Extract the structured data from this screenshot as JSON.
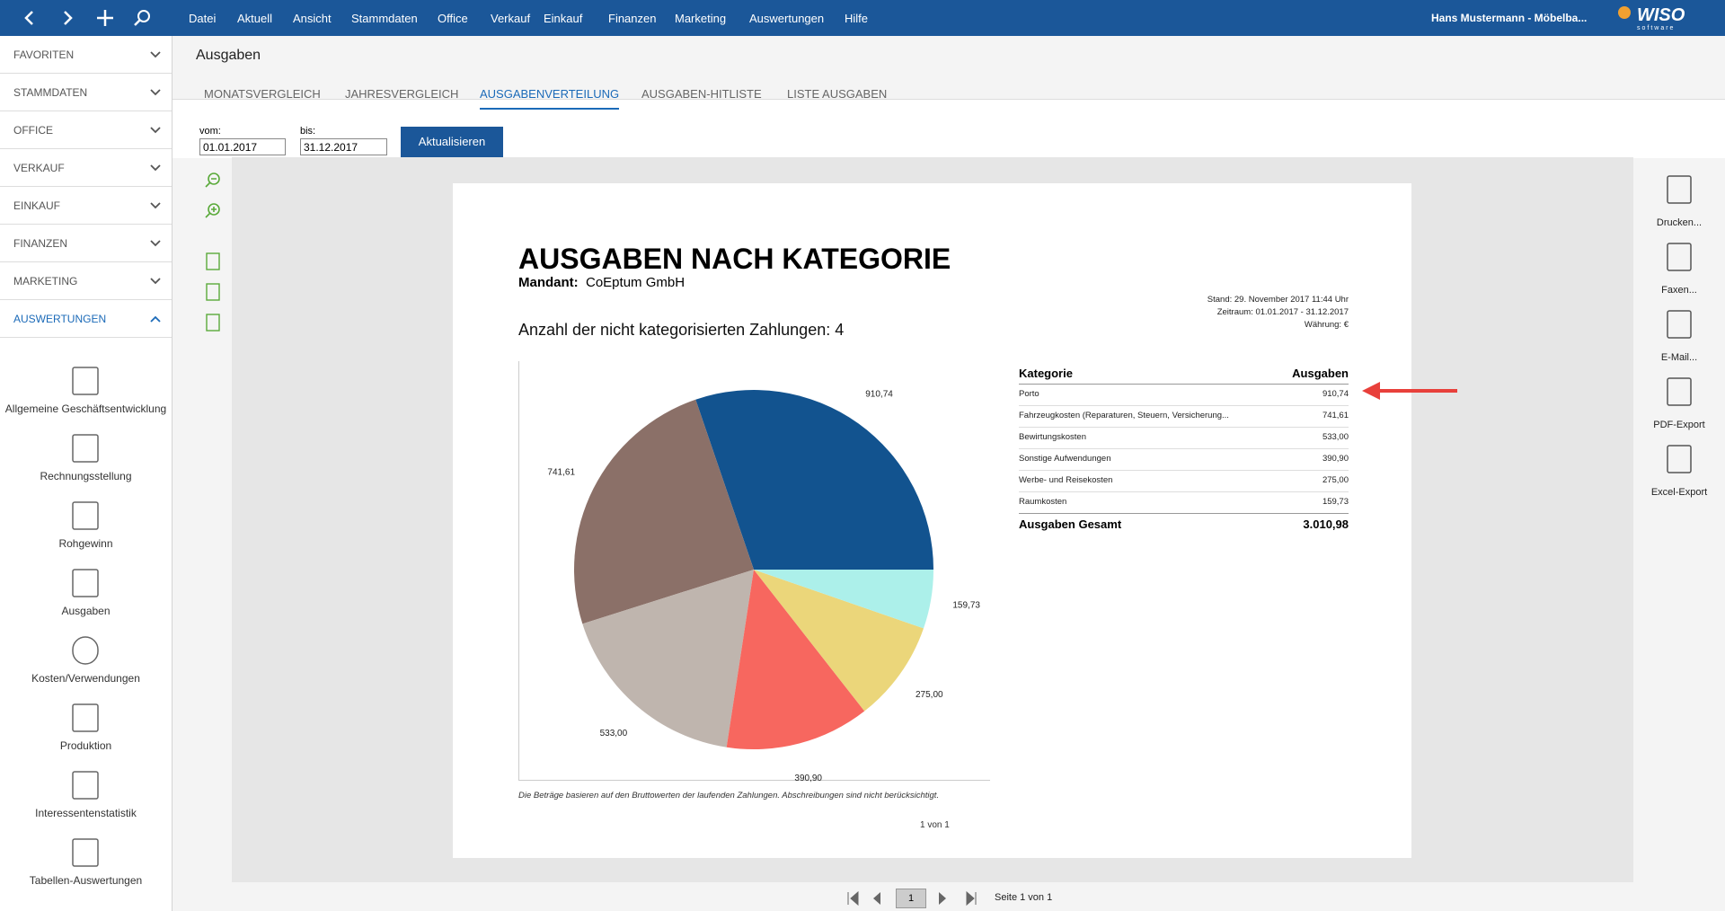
{
  "menu": {
    "items": [
      "Datei",
      "Aktuell",
      "Ansicht",
      "Stammdaten",
      "Office",
      "Verkauf",
      "Einkauf",
      "Finanzen",
      "Marketing",
      "Auswertungen",
      "Hilfe"
    ],
    "user": "Hans Mustermann - Möbelba...",
    "logo": "WISO",
    "logo_sub": "software"
  },
  "sidebar": {
    "sections": [
      "FAVORITEN",
      "STAMMDATEN",
      "OFFICE",
      "VERKAUF",
      "EINKAUF",
      "FINANZEN",
      "MARKETING",
      "AUSWERTUNGEN"
    ],
    "active_section": 7,
    "items": [
      "Allgemeine Geschäftsentwicklung",
      "Rechnungsstellung",
      "Rohgewinn",
      "Ausgaben",
      "Kosten/Verwendungen",
      "Produktion",
      "Interessentenstatistik",
      "Tabellen-Auswertungen"
    ]
  },
  "page": {
    "title": "Ausgaben",
    "tabs": [
      "MONATSVERGLEICH",
      "JAHRESVERGLEICH",
      "AUSGABENVERTEILUNG",
      "AUSGABEN-HITLISTE",
      "LISTE AUSGABEN"
    ],
    "active_tab": 2
  },
  "filter": {
    "from_label": "vom:",
    "from": "01.01.2017",
    "to_label": "bis:",
    "to": "31.12.2017",
    "button": "Aktualisieren"
  },
  "report": {
    "title": "AUSGABEN NACH KATEGORIE",
    "mandant_label": "Mandant:",
    "mandant": "CoEptum GmbH",
    "meta": [
      "Stand:  29. November 2017 11:44 Uhr",
      "Zeitraum: 01.01.2017 - 31.12.2017",
      "Währung: €"
    ],
    "subtitle": "Anzahl der nicht kategorisierten Zahlungen: 4",
    "table_headers": [
      "Kategorie",
      "Ausgaben"
    ],
    "total_label": "Ausgaben Gesamt",
    "total_value": "3.010,98",
    "footnote": "Die Beträge basieren auf den Bruttowerten der laufenden Zahlungen. Abschreibungen sind nicht berücksichtigt.",
    "page_no": "1 von 1"
  },
  "chart_data": {
    "type": "pie",
    "categories": [
      "Porto",
      "Fahrzeugkosten (Reparaturen, Steuern, Versicherung...",
      "Bewirtungskosten",
      "Sonstige Aufwendungen",
      "Werbe- und Reisekosten",
      "Raumkosten"
    ],
    "values": [
      910.74,
      741.61,
      533.0,
      390.9,
      275.0,
      159.73
    ],
    "value_labels": [
      "910,74",
      "741,61",
      "533,00",
      "390,90",
      "275,00",
      "159,73"
    ],
    "colors": [
      "#12538f",
      "#8b7068",
      "#bfb5ae",
      "#f7675f",
      "#ebd67a",
      "#acf0ea"
    ]
  },
  "actions": [
    "Drucken...",
    "Faxen...",
    "E-Mail...",
    "PDF-Export",
    "Excel-Export"
  ],
  "pager": {
    "page": "1",
    "text": "Seite 1 von 1"
  }
}
